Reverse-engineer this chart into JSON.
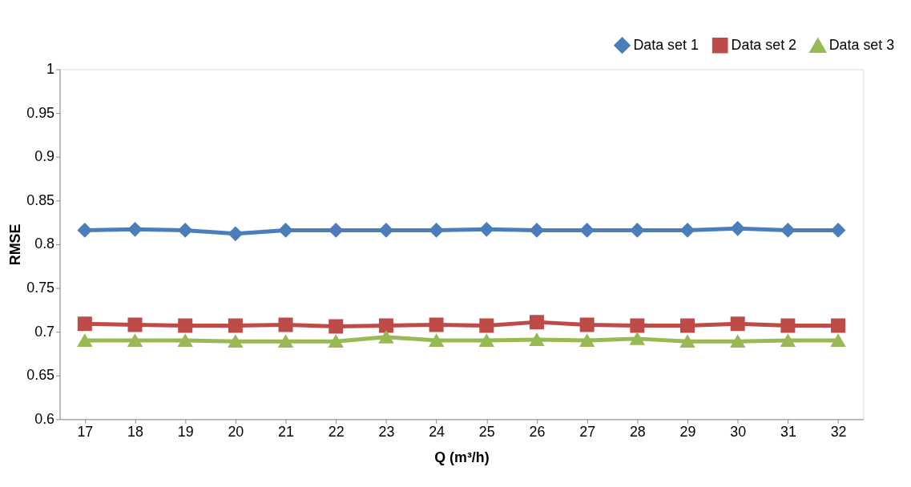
{
  "chart_data": {
    "type": "line",
    "xlabel": "Q (m³/h)",
    "ylabel": "RMSE",
    "categories": [
      "17",
      "18",
      "19",
      "20",
      "21",
      "22",
      "23",
      "24",
      "25",
      "26",
      "27",
      "28",
      "29",
      "30",
      "31",
      "32"
    ],
    "series": [
      {
        "name": "Data set 1",
        "color": "#4a7ebb",
        "marker": "diamond",
        "values": [
          0.816,
          0.817,
          0.816,
          0.812,
          0.816,
          0.816,
          0.816,
          0.816,
          0.817,
          0.816,
          0.816,
          0.816,
          0.816,
          0.818,
          0.816,
          0.816
        ]
      },
      {
        "name": "Data set 2",
        "color": "#be4b48",
        "marker": "square",
        "values": [
          0.709,
          0.708,
          0.707,
          0.707,
          0.708,
          0.706,
          0.707,
          0.708,
          0.707,
          0.711,
          0.708,
          0.707,
          0.707,
          0.709,
          0.707,
          0.707
        ]
      },
      {
        "name": "Data set 3",
        "color": "#98b954",
        "marker": "triangle",
        "values": [
          0.69,
          0.69,
          0.69,
          0.689,
          0.689,
          0.689,
          0.694,
          0.69,
          0.69,
          0.691,
          0.69,
          0.692,
          0.689,
          0.689,
          0.69,
          0.69
        ]
      }
    ],
    "ylim": [
      0.6,
      1
    ],
    "yticks": [
      0.6,
      0.65,
      0.7,
      0.75,
      0.8,
      0.85,
      0.9,
      0.95,
      1
    ],
    "grid": false,
    "legend": "top right",
    "line_style": "solid"
  }
}
